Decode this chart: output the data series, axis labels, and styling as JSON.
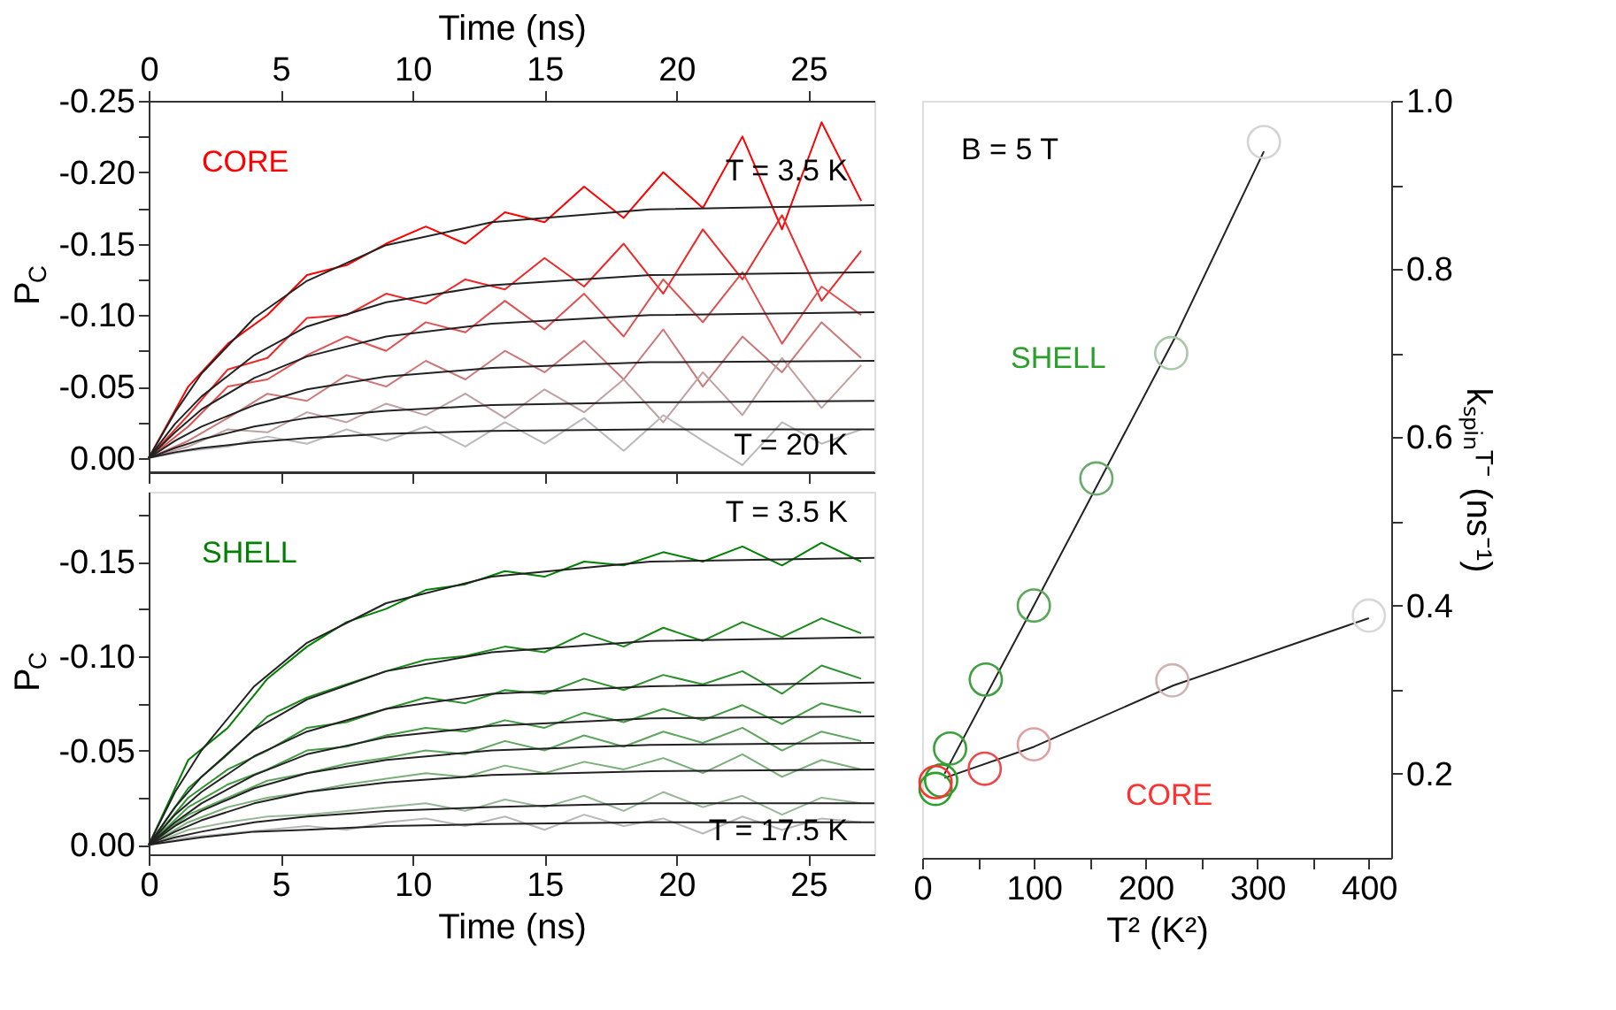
{
  "chart_data": [
    {
      "type": "line",
      "x2label": "Time (ns)",
      "ylabel": "P$_{C}$",
      "x2lim": [
        0,
        27.5
      ],
      "x2ticks": [
        0,
        5,
        10,
        15,
        20,
        25
      ],
      "xlim": [
        0,
        27.5
      ],
      "xticks": [
        0,
        5,
        10,
        15,
        20,
        25
      ],
      "tick_labels": "y",
      "ylim": [
        0.01,
        -0.25
      ],
      "yticks": [
        {
          "value": -0.25,
          "label": "-0.25"
        },
        {
          "value": -0.225,
          "label": null
        },
        {
          "value": -0.2,
          "label": "-0.20"
        },
        {
          "value": -0.175,
          "label": null
        },
        {
          "value": -0.15,
          "label": "-0.15"
        },
        {
          "value": -0.125,
          "label": null
        },
        {
          "value": -0.1,
          "label": "-0.10"
        },
        {
          "value": -0.075,
          "label": null
        },
        {
          "value": -0.05,
          "label": "-0.05"
        },
        {
          "value": -0.025,
          "label": null
        },
        {
          "value": 0,
          "label": "0.00"
        }
      ],
      "grid": false,
      "legend": false,
      "marker": "none",
      "line_style": "solid",
      "annotations": [
        "CORE",
        "T = 3.5 K",
        "T = 20 K"
      ],
      "x": [
        0,
        1.5,
        3,
        4.5,
        6,
        7.5,
        9,
        10.5,
        12,
        13.5,
        15,
        16.5,
        18,
        19.5,
        21,
        22.5,
        24,
        25.5,
        27
      ],
      "series": [
        {
          "color": "#ff0000",
          "values": [
            0,
            -0.05,
            -0.08,
            -0.1,
            -0.128,
            -0.135,
            -0.15,
            -0.162,
            -0.15,
            -0.172,
            -0.165,
            -0.19,
            -0.168,
            -0.2,
            -0.175,
            -0.225,
            -0.16,
            -0.235,
            -0.18
          ]
        },
        {
          "color": "#ee2828",
          "values": [
            0,
            -0.03,
            -0.062,
            -0.07,
            -0.098,
            -0.1,
            -0.115,
            -0.108,
            -0.125,
            -0.118,
            -0.14,
            -0.12,
            -0.15,
            -0.115,
            -0.16,
            -0.125,
            -0.17,
            -0.11,
            -0.145
          ]
        },
        {
          "color": "#e05050",
          "values": [
            0,
            -0.022,
            -0.05,
            -0.055,
            -0.072,
            -0.085,
            -0.075,
            -0.095,
            -0.088,
            -0.11,
            -0.09,
            -0.115,
            -0.085,
            -0.125,
            -0.095,
            -0.13,
            -0.08,
            -0.12,
            -0.1
          ]
        },
        {
          "color": "#cc7878",
          "values": [
            0,
            -0.012,
            -0.028,
            -0.045,
            -0.04,
            -0.058,
            -0.05,
            -0.068,
            -0.055,
            -0.075,
            -0.06,
            -0.082,
            -0.055,
            -0.09,
            -0.05,
            -0.085,
            -0.06,
            -0.095,
            -0.07
          ]
        },
        {
          "color": "#c0a0a0",
          "values": [
            0,
            -0.008,
            -0.02,
            -0.018,
            -0.032,
            -0.025,
            -0.038,
            -0.03,
            -0.045,
            -0.028,
            -0.048,
            -0.032,
            -0.055,
            -0.025,
            -0.06,
            -0.03,
            -0.07,
            -0.035,
            -0.065
          ]
        },
        {
          "color": "#bababa",
          "values": [
            0,
            -0.005,
            -0.008,
            -0.015,
            -0.01,
            -0.02,
            -0.012,
            -0.022,
            -0.008,
            -0.025,
            -0.01,
            -0.028,
            -0.005,
            -0.03,
            -0.012,
            0.005,
            -0.025,
            -0.01,
            -0.02
          ]
        },
        {
          "type": "line",
          "color": "#222222",
          "x": [
            0,
            1,
            2,
            4,
            6,
            9,
            13,
            19,
            27.5
          ],
          "values": [
            0,
            -0.032,
            -0.059,
            -0.098,
            -0.124,
            -0.149,
            -0.165,
            -0.174,
            -0.177
          ]
        },
        {
          "type": "line",
          "color": "#222222",
          "x": [
            0,
            1,
            2,
            4,
            6,
            9,
            13,
            19,
            27.5
          ],
          "values": [
            0,
            -0.024,
            -0.043,
            -0.072,
            -0.092,
            -0.109,
            -0.121,
            -0.128,
            -0.13
          ]
        },
        {
          "type": "line",
          "color": "#222222",
          "x": [
            0,
            1,
            2,
            4,
            6,
            9,
            13,
            19,
            27.5
          ],
          "values": [
            0,
            -0.018,
            -0.034,
            -0.056,
            -0.071,
            -0.085,
            -0.094,
            -0.1,
            -0.102
          ]
        },
        {
          "type": "line",
          "color": "#222222",
          "x": [
            0,
            1,
            2,
            4,
            6,
            9,
            13,
            19,
            27.5
          ],
          "values": [
            0,
            -0.012,
            -0.022,
            -0.037,
            -0.048,
            -0.057,
            -0.063,
            -0.067,
            -0.068
          ]
        },
        {
          "type": "line",
          "color": "#222222",
          "x": [
            0,
            1,
            2,
            4,
            6,
            9,
            13,
            19,
            27.5
          ],
          "values": [
            0,
            -0.007,
            -0.013,
            -0.022,
            -0.028,
            -0.033,
            -0.037,
            -0.039,
            -0.04
          ]
        },
        {
          "type": "line",
          "color": "#222222",
          "x": [
            0,
            1,
            2,
            4,
            6,
            9,
            13,
            19,
            27.5
          ],
          "values": [
            0,
            -0.004,
            -0.007,
            -0.011,
            -0.014,
            -0.017,
            -0.019,
            -0.02,
            -0.02
          ]
        }
      ]
    },
    {
      "type": "line",
      "xlabel": "Time (ns)",
      "ylabel": "P$_{C}$",
      "xlim": [
        0,
        27.5
      ],
      "xticks": [
        0,
        5,
        10,
        15,
        20,
        25
      ],
      "ylim": [
        0.005,
        -0.187
      ],
      "yticks": [
        {
          "value": -0.175,
          "label": null
        },
        {
          "value": -0.15,
          "label": "-0.15"
        },
        {
          "value": -0.125,
          "label": null
        },
        {
          "value": -0.1,
          "label": "-0.10"
        },
        {
          "value": -0.075,
          "label": null
        },
        {
          "value": -0.05,
          "label": "-0.05"
        },
        {
          "value": -0.025,
          "label": null
        },
        {
          "value": 0,
          "label": "0.00"
        }
      ],
      "grid": false,
      "legend": false,
      "marker": "none",
      "line_style": "solid",
      "annotations": [
        "SHELL",
        "T = 3.5 K",
        "T = 17.5 K"
      ],
      "x": [
        0,
        1.5,
        3,
        4.5,
        6,
        7.5,
        9,
        10.5,
        12,
        13.5,
        15,
        16.5,
        18,
        19.5,
        21,
        22.5,
        24,
        25.5,
        27
      ],
      "series": [
        {
          "color": "#008000",
          "values": [
            0,
            -0.045,
            -0.062,
            -0.088,
            -0.105,
            -0.118,
            -0.125,
            -0.135,
            -0.138,
            -0.145,
            -0.142,
            -0.15,
            -0.148,
            -0.155,
            -0.15,
            -0.158,
            -0.148,
            -0.16,
            -0.15
          ]
        },
        {
          "color": "#1a8a1a",
          "values": [
            0,
            -0.03,
            -0.048,
            -0.068,
            -0.078,
            -0.085,
            -0.092,
            -0.098,
            -0.1,
            -0.105,
            -0.102,
            -0.112,
            -0.105,
            -0.115,
            -0.108,
            -0.118,
            -0.11,
            -0.12,
            -0.112
          ]
        },
        {
          "color": "#2e922e",
          "values": [
            0,
            -0.025,
            -0.04,
            -0.05,
            -0.062,
            -0.065,
            -0.072,
            -0.078,
            -0.075,
            -0.082,
            -0.08,
            -0.088,
            -0.082,
            -0.09,
            -0.085,
            -0.092,
            -0.08,
            -0.095,
            -0.088
          ]
        },
        {
          "color": "#449c44",
          "values": [
            0,
            -0.02,
            -0.032,
            -0.04,
            -0.05,
            -0.052,
            -0.058,
            -0.062,
            -0.06,
            -0.066,
            -0.062,
            -0.07,
            -0.065,
            -0.072,
            -0.066,
            -0.074,
            -0.064,
            -0.075,
            -0.07
          ]
        },
        {
          "color": "#5ea65e",
          "values": [
            0,
            -0.016,
            -0.025,
            -0.034,
            -0.038,
            -0.043,
            -0.046,
            -0.05,
            -0.048,
            -0.055,
            -0.05,
            -0.058,
            -0.052,
            -0.06,
            -0.054,
            -0.062,
            -0.05,
            -0.06,
            -0.055
          ]
        },
        {
          "color": "#7aaf7a",
          "values": [
            0,
            -0.012,
            -0.02,
            -0.025,
            -0.028,
            -0.032,
            -0.035,
            -0.038,
            -0.036,
            -0.042,
            -0.038,
            -0.044,
            -0.04,
            -0.046,
            -0.038,
            -0.048,
            -0.036,
            -0.045,
            -0.04
          ]
        },
        {
          "color": "#98b898",
          "values": [
            0,
            -0.008,
            -0.012,
            -0.015,
            -0.016,
            -0.018,
            -0.02,
            -0.022,
            -0.018,
            -0.024,
            -0.02,
            -0.026,
            -0.018,
            -0.028,
            -0.02,
            -0.026,
            -0.016,
            -0.025,
            -0.022
          ]
        },
        {
          "color": "#b8b8b8",
          "values": [
            0,
            -0.004,
            -0.006,
            -0.008,
            -0.01,
            -0.008,
            -0.012,
            -0.014,
            -0.01,
            -0.015,
            -0.008,
            -0.016,
            -0.01,
            -0.014,
            -0.006,
            -0.015,
            -0.008,
            -0.014,
            -0.012
          ]
        },
        {
          "type": "line",
          "color": "#222222",
          "x": [
            0,
            1,
            2,
            4,
            6,
            9,
            13,
            19,
            27.5
          ],
          "values": [
            0,
            -0.028,
            -0.05,
            -0.084,
            -0.107,
            -0.128,
            -0.142,
            -0.15,
            -0.152
          ]
        },
        {
          "type": "line",
          "color": "#222222",
          "x": [
            0,
            1,
            2,
            4,
            6,
            9,
            13,
            19,
            27.5
          ],
          "values": [
            0,
            -0.02,
            -0.036,
            -0.061,
            -0.077,
            -0.092,
            -0.102,
            -0.108,
            -0.11
          ]
        },
        {
          "type": "line",
          "color": "#222222",
          "x": [
            0,
            1,
            2,
            4,
            6,
            9,
            13,
            19,
            27.5
          ],
          "values": [
            0,
            -0.016,
            -0.028,
            -0.047,
            -0.06,
            -0.072,
            -0.08,
            -0.084,
            -0.086
          ]
        },
        {
          "type": "line",
          "color": "#222222",
          "x": [
            0,
            1,
            2,
            4,
            6,
            9,
            13,
            19,
            27.5
          ],
          "values": [
            0,
            -0.012,
            -0.022,
            -0.037,
            -0.048,
            -0.057,
            -0.063,
            -0.067,
            -0.068
          ]
        },
        {
          "type": "line",
          "color": "#222222",
          "x": [
            0,
            1,
            2,
            4,
            6,
            9,
            13,
            19,
            27.5
          ],
          "values": [
            0,
            -0.01,
            -0.018,
            -0.03,
            -0.038,
            -0.045,
            -0.05,
            -0.053,
            -0.054
          ]
        },
        {
          "type": "line",
          "color": "#222222",
          "x": [
            0,
            1,
            2,
            4,
            6,
            9,
            13,
            19,
            27.5
          ],
          "values": [
            0,
            -0.007,
            -0.013,
            -0.022,
            -0.028,
            -0.033,
            -0.037,
            -0.039,
            -0.04
          ]
        },
        {
          "type": "line",
          "color": "#222222",
          "x": [
            0,
            1,
            2,
            4,
            6,
            9,
            13,
            19,
            27.5
          ],
          "values": [
            0,
            -0.004,
            -0.007,
            -0.012,
            -0.015,
            -0.018,
            -0.02,
            -0.022,
            -0.022
          ]
        },
        {
          "type": "line",
          "color": "#222222",
          "x": [
            0,
            1,
            2,
            4,
            6,
            9,
            13,
            19,
            27.5
          ],
          "values": [
            0,
            -0.002,
            -0.004,
            -0.007,
            -0.008,
            -0.01,
            -0.011,
            -0.012,
            -0.012
          ]
        }
      ]
    },
    {
      "type": "scatter",
      "xlabel": "T² (K²)",
      "y2label": "kₛₚᵢₙᵀ⁻ (ns⁻¹)",
      "xlim": [
        0,
        420
      ],
      "xticks": [
        0,
        {
          "value": 50,
          "label": null
        },
        100,
        {
          "value": 150,
          "label": null
        },
        200,
        {
          "value": 250,
          "label": null
        },
        300,
        {
          "value": 350,
          "label": null
        },
        400
      ],
      "y2lim": [
        0.1,
        1.0
      ],
      "y2ticks": [
        0.2,
        {
          "value": 0.3,
          "label": null
        },
        0.4,
        {
          "value": 0.5,
          "label": null
        },
        0.6,
        {
          "value": 0.7,
          "label": null
        },
        0.8,
        {
          "value": 0.9,
          "label": null
        },
        {
          "value": 1,
          "label": "1.0"
        }
      ],
      "grid": false,
      "legend": false,
      "marker": "circle",
      "line_style": "solid",
      "annotations": [
        "B = 5 T",
        "SHELL",
        "CORE"
      ],
      "series": [
        {
          "type": "line",
          "axis": "y2",
          "marker": "none",
          "color": "#222222",
          "x": [
            20,
            100,
            225,
            306
          ],
          "values": [
            0.2,
            0.4,
            0.715,
            0.94
          ]
        },
        {
          "type": "line",
          "axis": "y2",
          "marker": "none",
          "color": "#222222",
          "x": [
            20,
            100,
            225,
            400
          ],
          "values": [
            0.195,
            0.232,
            0.305,
            0.385
          ]
        },
        {
          "type": "scatter",
          "axis": "y2",
          "x": [
            12,
            17,
            25,
            57,
            100,
            156,
            223,
            306
          ],
          "values": [
            0.182,
            0.192,
            0.23,
            0.312,
            0.4,
            0.551,
            0.7,
            0.951
          ],
          "colors": [
            "#2aa02a",
            "#2aa02a",
            "#3aa03a",
            "#40a040",
            "#58a858",
            "#6aaa6a",
            "#a8c8a8",
            "#d4d4d4"
          ]
        },
        {
          "type": "scatter",
          "axis": "y2",
          "x": [
            12,
            56,
            100,
            224,
            400
          ],
          "values": [
            0.19,
            0.206,
            0.235,
            0.311,
            0.388
          ],
          "colors": [
            "#ff3030",
            "#f04848",
            "#e0a0a0",
            "#d0b4b4",
            "#d8d8d8"
          ]
        }
      ]
    }
  ]
}
